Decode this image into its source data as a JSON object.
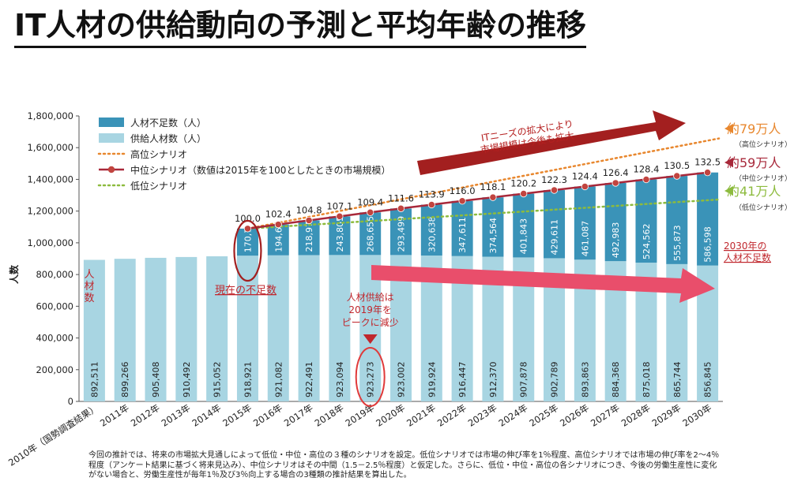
{
  "title": "IT人材の供給動向の予測と平均年齢の推移",
  "chart_data": {
    "type": "bar",
    "stacked": true,
    "categories": [
      "2010年（国勢調査結果）",
      "2011年",
      "2012年",
      "2013年",
      "2014年",
      "2015年",
      "2016年",
      "2017年",
      "2018年",
      "2019年",
      "2020年",
      "2021年",
      "2022年",
      "2023年",
      "2024年",
      "2025年",
      "2026年",
      "2027年",
      "2028年",
      "2029年",
      "2030年"
    ],
    "ylabel": "人数",
    "ylim": [
      0,
      1800000
    ],
    "yticks": [
      "0",
      "200,000",
      "400,000",
      "600,000",
      "800,000",
      "1,000,000",
      "1,200,000",
      "1,400,000",
      "1,600,000",
      "1,800,000"
    ],
    "grid": false,
    "legend_position": "top-left",
    "series": [
      {
        "name": "供給人材数（人）",
        "color": "#a8d5e2",
        "values": [
          892511,
          899266,
          905408,
          910492,
          915052,
          918921,
          921082,
          922491,
          923094,
          923273,
          923002,
          919924,
          916447,
          912370,
          907878,
          902789,
          893863,
          884368,
          875018,
          865744,
          856845
        ],
        "labels": [
          "892,511",
          "899,266",
          "905,408",
          "910,492",
          "915,052",
          "918,921",
          "921,082",
          "922,491",
          "923,094",
          "923,273",
          "923,002",
          "919,924",
          "916,447",
          "912,370",
          "907,878",
          "902,789",
          "893,863",
          "884,368",
          "875,018",
          "865,744",
          "856,845"
        ]
      },
      {
        "name": "人材不足数（人）",
        "color": "#3a93b8",
        "values": [
          null,
          null,
          null,
          null,
          null,
          170700,
          194608,
          218976,
          243805,
          268655,
          293499,
          320638,
          347611,
          374564,
          401843,
          429611,
          461087,
          492983,
          524562,
          555873,
          586598
        ],
        "labels": [
          "",
          "",
          "",
          "",
          "",
          "170,700",
          "194,608",
          "218,976",
          "243,805",
          "268,655",
          "293,499",
          "320,638",
          "347,611",
          "374,564",
          "401,843",
          "429,611",
          "461,087",
          "492,983",
          "524,562",
          "555,873",
          "586,598"
        ]
      }
    ],
    "lines": [
      {
        "name": "高位シナリオ",
        "color": "#e8872e",
        "style": "dotted",
        "start_index": 5,
        "start": 1089621,
        "end": 1658000
      },
      {
        "name": "中位シナリオ（数値は2015年を100としたときの市場規模）",
        "color": "#a8283a",
        "style": "solid",
        "market_index": [
          "",
          "",
          "",
          "",
          "",
          "100.0",
          "102.4",
          "104.8",
          "107.1",
          "109.4",
          "111.6",
          "113.9",
          "116.0",
          "118.1",
          "120.2",
          "122.3",
          "124.4",
          "126.4",
          "128.4",
          "130.5",
          "132.5"
        ]
      },
      {
        "name": "低位シナリオ",
        "color": "#8dbb3e",
        "style": "dotted",
        "start_index": 5,
        "start": 1089621,
        "end": 1273000
      }
    ],
    "annotations": {
      "arrow1": "ITニーズの拡大により市場規模は今後も拡大",
      "arrow1_lines": [
        "ITニーズの拡大により",
        "市場規模は今後も拡大"
      ],
      "high": {
        "value": "約79万人",
        "sub": "（高位シナリオ）"
      },
      "mid": {
        "value": "約59万人",
        "sub": "（中位シナリオ）"
      },
      "low": {
        "value": "約41万人",
        "sub": "（低位シナリオ）"
      },
      "shortage2030": [
        "2030年の",
        "人材不足数"
      ],
      "current": "現在の不足数",
      "jinzai": [
        "人",
        "材",
        "数"
      ],
      "peak": [
        "人材供給は",
        "2019年を",
        "ピークに減少"
      ]
    }
  },
  "footnote": "今回の推計では、将来の市場拡大見通しによって低位・中位・高位の３種のシナリオを設定。低位シナリオでは市場の伸び率を1％程度、高位シナリオでは市場の伸び率を2～4％程度（アンケート結果に基づく将来見込み）、中位シナリオはその中間（1.5－2.5％程度）と仮定した。さらに、低位・中位・高位の各シナリオにつき、今後の労働生産性に変化がない場合と、労働生産性が毎年1％及び3％向上する場合の3種類の推計結果を算出した。"
}
